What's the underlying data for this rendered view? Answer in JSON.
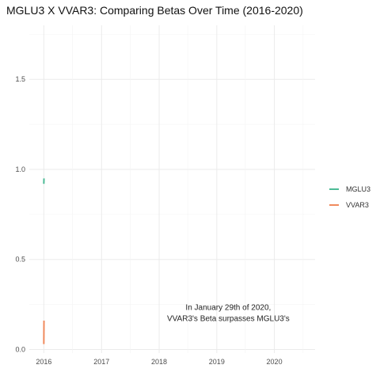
{
  "chart_data": {
    "type": "line",
    "title": "MGLU3 X VVAR3: Comparing Betas Over Time (2016-2020)",
    "xlabel": "",
    "ylabel": "",
    "x_ticks": [
      "2016",
      "2017",
      "2018",
      "2019",
      "2020"
    ],
    "xlim": [
      "2015-10-01",
      "2020-09-15"
    ],
    "y_ticks": [
      "0.0",
      "0.5",
      "1.0",
      "1.5"
    ],
    "ylim": [
      -0.02,
      1.8
    ],
    "grid": true,
    "legend_position": "right",
    "series": [
      {
        "name": "MGLU3",
        "color": "#4dbb96",
        "points": [
          {
            "x": "2016-01-01",
            "y": 0.92
          },
          {
            "x": "2016-01-02",
            "y": 0.95
          }
        ]
      },
      {
        "name": "VVAR3",
        "color": "#f08a5d",
        "points": [
          {
            "x": "2016-01-01",
            "y": 0.03
          },
          {
            "x": "2016-01-02",
            "y": 0.16
          }
        ]
      }
    ],
    "annotations": [
      {
        "x": "2019-03-15",
        "y": 0.22,
        "lines": [
          "In January 29th of 2020,",
          "VVAR3's Beta surpasses MGLU3's"
        ]
      }
    ]
  }
}
